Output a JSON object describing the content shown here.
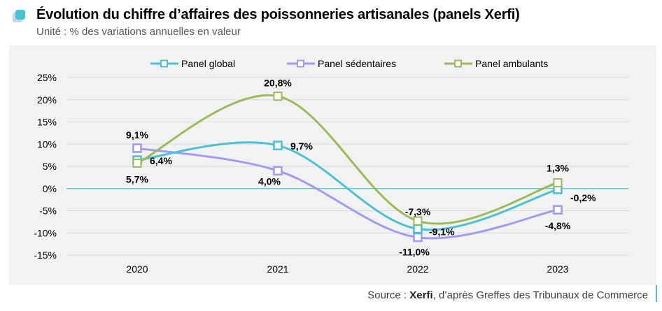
{
  "header": {
    "title": "Évolution du chiffre d’affaires des poissonneries artisanales (panels Xerfi)",
    "subtitle": "Unité : % des variations annuelles en valeur",
    "icon": "stacked-squares-icon"
  },
  "source": {
    "prefix": "Source : ",
    "brand": "Xerfi",
    "suffix": ", d’après Greffes des Tribunaux de Commerce"
  },
  "colors": {
    "panel_global": "#4bc2d4",
    "panel_sedentaires": "#a19bf5",
    "panel_ambulants": "#9bbb59",
    "panel_background": "#f2f2f2",
    "gridline": "#d9d9d9",
    "zero_line": "#4bc2d4"
  },
  "chart_data": {
    "type": "line",
    "title": "Évolution du chiffre d’affaires des poissonneries artisanales (panels Xerfi)",
    "subtitle": "Unité : % des variations annuelles en valeur",
    "xlabel": "",
    "ylabel": "",
    "categories": [
      "2020",
      "2021",
      "2022",
      "2023"
    ],
    "ylim": [
      -15,
      25
    ],
    "yticks": [
      25,
      20,
      15,
      10,
      5,
      0,
      -5,
      -10,
      -15
    ],
    "ytick_labels": [
      "25%",
      "20%",
      "15%",
      "10%",
      "5%",
      "0%",
      "-5%",
      "-10%",
      "-15%"
    ],
    "grid": true,
    "legend_position": "top-center",
    "smooth": true,
    "marker": "square",
    "series": [
      {
        "name": "Panel global",
        "color": "#4bc2d4",
        "values": [
          6.4,
          9.7,
          -9.1,
          -0.2
        ],
        "labels": [
          "6,4%",
          "9,7%",
          "-9,1%",
          "-0,2%"
        ]
      },
      {
        "name": "Panel sédentaires",
        "color": "#a19bf5",
        "values": [
          9.1,
          4.0,
          -11.0,
          -4.8
        ],
        "labels": [
          "9,1%",
          "4,0%",
          "-11,0%",
          "-4,8%"
        ]
      },
      {
        "name": "Panel ambulants",
        "color": "#9bbb59",
        "values": [
          5.7,
          20.8,
          -7.3,
          1.3
        ],
        "labels": [
          "5,7%",
          "20,8%",
          "-7,3%",
          "1,3%"
        ]
      }
    ]
  }
}
